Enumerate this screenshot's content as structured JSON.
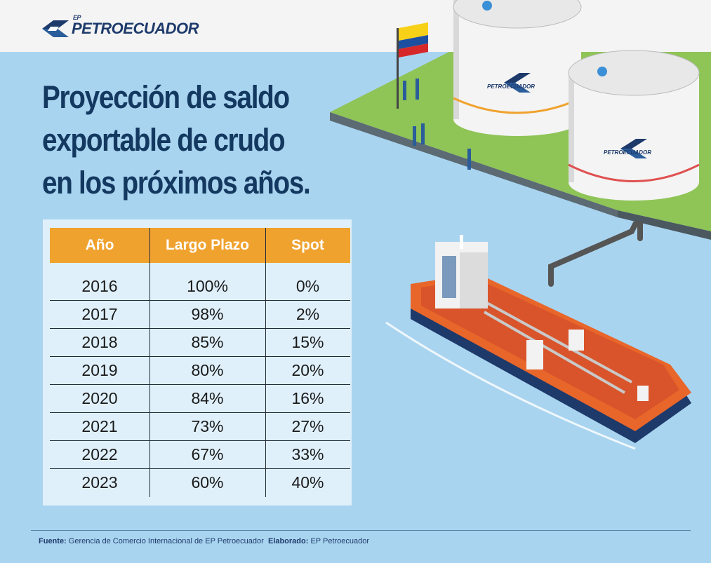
{
  "brand": {
    "prefix": "EP",
    "name": "PETROECUADOR"
  },
  "title": "Proyección de saldo exportable de crudo en los próximos años.",
  "chart_data": {
    "type": "table",
    "columns": [
      "Año",
      "Largo Plazo",
      "Spot"
    ],
    "rows": [
      {
        "year": "2016",
        "largo_plazo": "100%",
        "spot": "0%"
      },
      {
        "year": "2017",
        "largo_plazo": "98%",
        "spot": "2%"
      },
      {
        "year": "2018",
        "largo_plazo": "85%",
        "spot": "15%"
      },
      {
        "year": "2019",
        "largo_plazo": "80%",
        "spot": "20%"
      },
      {
        "year": "2020",
        "largo_plazo": "84%",
        "spot": "16%"
      },
      {
        "year": "2021",
        "largo_plazo": "73%",
        "spot": "27%"
      },
      {
        "year": "2022",
        "largo_plazo": "67%",
        "spot": "33%"
      },
      {
        "year": "2023",
        "largo_plazo": "60%",
        "spot": "40%"
      }
    ]
  },
  "footer": {
    "source_label": "Fuente:",
    "source_text": "Gerencia de Comercio Internacional de EP Petroecuador",
    "made_label": "Elaborado:",
    "made_text": "EP Petroecuador"
  },
  "tank_label": "PETROECUADOR",
  "colors": {
    "header": "#f0a22e",
    "title": "#143960",
    "sea": "#a9d4ef",
    "land": "#93c95a",
    "ship_hull": "#e8662a"
  }
}
